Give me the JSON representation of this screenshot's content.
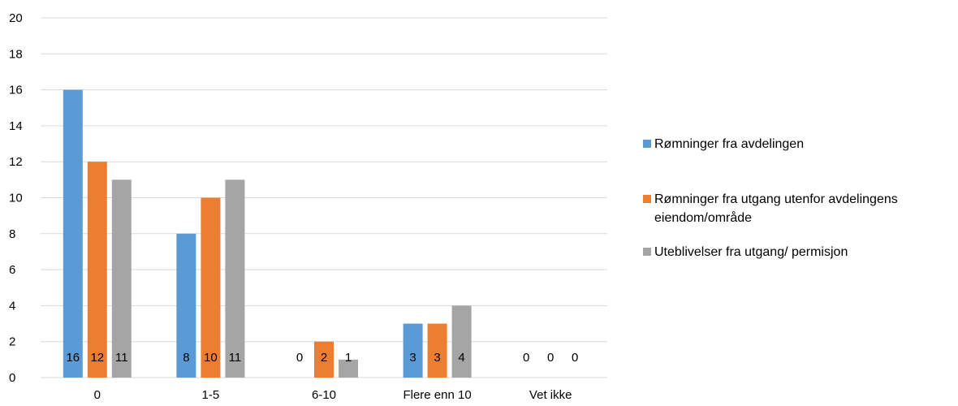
{
  "chart_data": {
    "type": "bar",
    "categories": [
      "0",
      "1-5",
      "6-10",
      "Flere enn 10",
      "Vet ikke"
    ],
    "series": [
      {
        "name": "Rømninger fra avdelingen",
        "values": [
          16,
          8,
          0,
          3,
          0
        ],
        "color": "#5B9BD5"
      },
      {
        "name": "Rømninger fra utgang utenfor avdelingens eiendom/område",
        "values": [
          12,
          10,
          2,
          3,
          0
        ],
        "color": "#ED7D31"
      },
      {
        "name": "Uteblivelser fra utgang/ permisjon",
        "values": [
          11,
          11,
          1,
          4,
          0
        ],
        "color": "#A5A5A5"
      }
    ],
    "yticks": [
      "0",
      "2",
      "4",
      "6",
      "8",
      "10",
      "12",
      "14",
      "16",
      "18",
      "20"
    ],
    "ylim": [
      0,
      20
    ],
    "grid": true,
    "data_labels": true,
    "legend_position": "right",
    "title": "",
    "xlabel": "",
    "ylabel": ""
  }
}
